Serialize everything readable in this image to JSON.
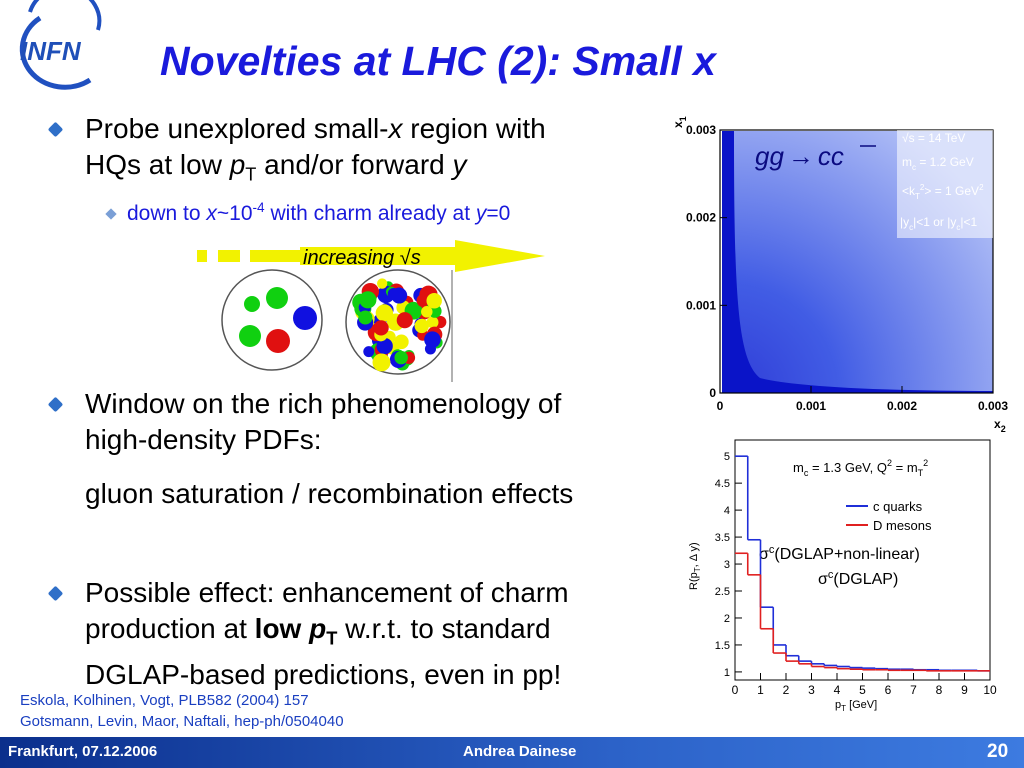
{
  "header": {
    "title": "Novelties at LHC (2): Small x",
    "logo": "INFN"
  },
  "bullets": [
    {
      "text": [
        "Probe unexplored small-",
        "x",
        " region with",
        "HQs at low ",
        "p",
        "T",
        " and/or forward ",
        "y"
      ],
      "sub": [
        "down to ",
        "x",
        "~10",
        "-4",
        " with charm already at ",
        "y",
        "=0"
      ]
    },
    {
      "text": [
        "Window on the rich phenomenology of",
        "high-density PDFs:"
      ],
      "note": "gluon saturation / recombination effects"
    },
    {
      "text": [
        "Possible effect: enhancement of charm",
        "production at ",
        "low ",
        "p",
        "T",
        " w.r.t. to standard",
        "DGLAP-based predictions, even in pp!"
      ]
    }
  ],
  "diagram": {
    "label": [
      "increasing ",
      "√s"
    ]
  },
  "figures": {
    "scatter": {
      "process": [
        "gg",
        "→",
        "cc"
      ],
      "legend": [
        [
          "√s = 14 TeV"
        ],
        [
          "m",
          "c",
          " = 1.2 GeV"
        ],
        [
          "<k",
          "T",
          "2",
          "> = 1 GeV",
          "2"
        ],
        [
          "|y",
          "c",
          "|<1 or |y",
          "c",
          "|<1"
        ]
      ],
      "xlabel": [
        "x",
        "2"
      ],
      "ylabel": [
        "x",
        "1"
      ],
      "xlim": [
        0,
        0.003
      ],
      "ylim": [
        0,
        0.003
      ],
      "xticks": [
        0,
        0.001,
        0.002,
        0.003
      ],
      "yticks": [
        0,
        0.001,
        0.002,
        0.003
      ]
    },
    "ratio": {
      "annotation": [
        "m",
        "c",
        " = 1.3 GeV, Q",
        "2",
        " = m",
        "T",
        "2"
      ],
      "ylabel": [
        "R(p",
        "T",
        ", Δ y)"
      ],
      "xlabel": [
        "p",
        "T",
        " [GeV]"
      ],
      "notes": [
        [
          "σ",
          "c",
          "(DGLAP+non-linear)"
        ],
        [
          "σ",
          "c",
          "(DGLAP)"
        ]
      ],
      "xlim": [
        0,
        10
      ],
      "ylim": [
        0.85,
        5.3
      ],
      "xticks": [
        0,
        1,
        2,
        3,
        4,
        5,
        6,
        7,
        8,
        9,
        10
      ],
      "yticks": [
        1,
        1.5,
        2,
        2.5,
        3,
        3.5,
        4,
        4.5,
        5
      ],
      "bins": [
        0,
        0.5,
        1,
        1.5,
        2,
        2.5,
        3,
        3.5,
        4,
        4.5,
        5,
        5.5,
        6,
        6.5,
        7,
        7.5,
        8,
        8.5,
        9,
        9.5,
        10
      ],
      "series": [
        {
          "name": "c quarks",
          "color": "#1f2fd8",
          "values": [
            5,
            3.45,
            2.2,
            1.5,
            1.3,
            1.2,
            1.15,
            1.12,
            1.1,
            1.08,
            1.07,
            1.06,
            1.05,
            1.05,
            1.04,
            1.04,
            1.03,
            1.03,
            1.03,
            1.02
          ]
        },
        {
          "name": "D mesons",
          "color": "#e02020",
          "values": [
            3.2,
            2.8,
            1.8,
            1.35,
            1.2,
            1.15,
            1.1,
            1.08,
            1.06,
            1.05,
            1.04,
            1.04,
            1.03,
            1.03,
            1.03,
            1.02,
            1.02,
            1.02,
            1.02,
            1.02
          ]
        }
      ]
    }
  },
  "references": [
    "Eskola, Kolhinen, Vogt, PLB582 (2004) 157",
    "Gotsmann, Levin, Maor, Naftali, hep-ph/0504040"
  ],
  "footer": {
    "left": "Frankfurt, 07.12.2006",
    "center": "Andrea Dainese",
    "page": "20"
  }
}
